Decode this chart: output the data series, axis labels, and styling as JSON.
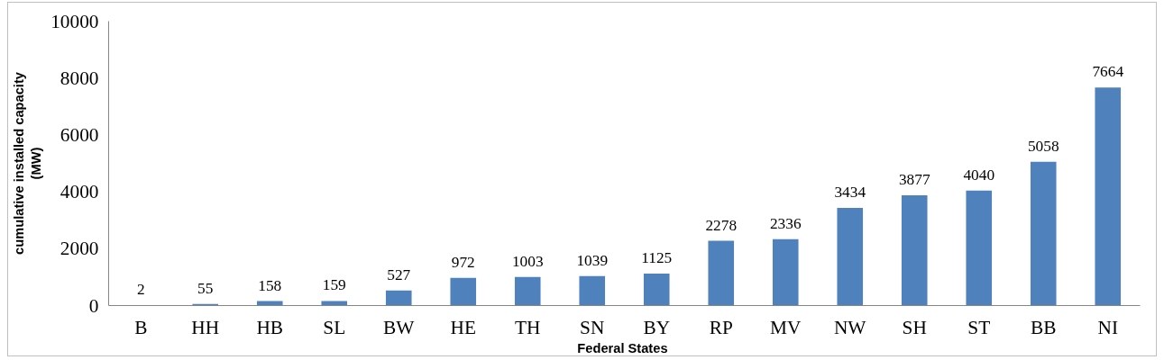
{
  "chart_data": {
    "type": "bar",
    "xlabel": "Federal  States",
    "ylabel": "cumulative installed capacity\n(MW)",
    "categories": [
      "B",
      "HH",
      "HB",
      "SL",
      "BW",
      "HE",
      "TH",
      "SN",
      "BY",
      "RP",
      "MV",
      "NW",
      "SH",
      "ST",
      "BB",
      "NI"
    ],
    "values": [
      2,
      55,
      158,
      159,
      527,
      972,
      1003,
      1039,
      1125,
      2278,
      2336,
      3434,
      3877,
      4040,
      5058,
      7664
    ],
    "color": "#4f81bd",
    "ylim": [
      0,
      10000
    ],
    "yticks": [
      0,
      2000,
      4000,
      6000,
      8000,
      10000
    ],
    "grid": false,
    "data_labels": true
  }
}
